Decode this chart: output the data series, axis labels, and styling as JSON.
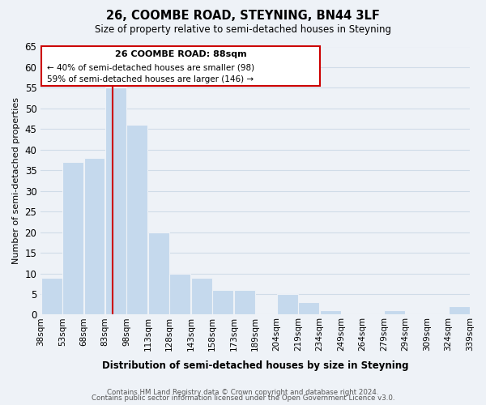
{
  "title": "26, COOMBE ROAD, STEYNING, BN44 3LF",
  "subtitle": "Size of property relative to semi-detached houses in Steyning",
  "xlabel": "Distribution of semi-detached houses by size in Steyning",
  "ylabel": "Number of semi-detached properties",
  "bins": [
    "38sqm",
    "53sqm",
    "68sqm",
    "83sqm",
    "98sqm",
    "113sqm",
    "128sqm",
    "143sqm",
    "158sqm",
    "173sqm",
    "189sqm",
    "204sqm",
    "219sqm",
    "234sqm",
    "249sqm",
    "264sqm",
    "279sqm",
    "294sqm",
    "309sqm",
    "324sqm",
    "339sqm"
  ],
  "values": [
    9,
    37,
    38,
    55,
    46,
    20,
    10,
    9,
    6,
    6,
    0,
    5,
    3,
    1,
    0,
    0,
    1,
    0,
    0,
    2
  ],
  "bar_color": "#c5d9ed",
  "ylim": [
    0,
    65
  ],
  "yticks": [
    0,
    5,
    10,
    15,
    20,
    25,
    30,
    35,
    40,
    45,
    50,
    55,
    60,
    65
  ],
  "property_line_x": 88,
  "property_line_label": "26 COOMBE ROAD: 88sqm",
  "annotation_smaller": "← 40% of semi-detached houses are smaller (98)",
  "annotation_larger": "59% of semi-detached houses are larger (146) →",
  "box_edge_color": "#cc0000",
  "footnote1": "Contains HM Land Registry data © Crown copyright and database right 2024.",
  "footnote2": "Contains public sector information licensed under the Open Government Licence v3.0.",
  "grid_color": "#d0dce8",
  "background_color": "#eef2f7"
}
